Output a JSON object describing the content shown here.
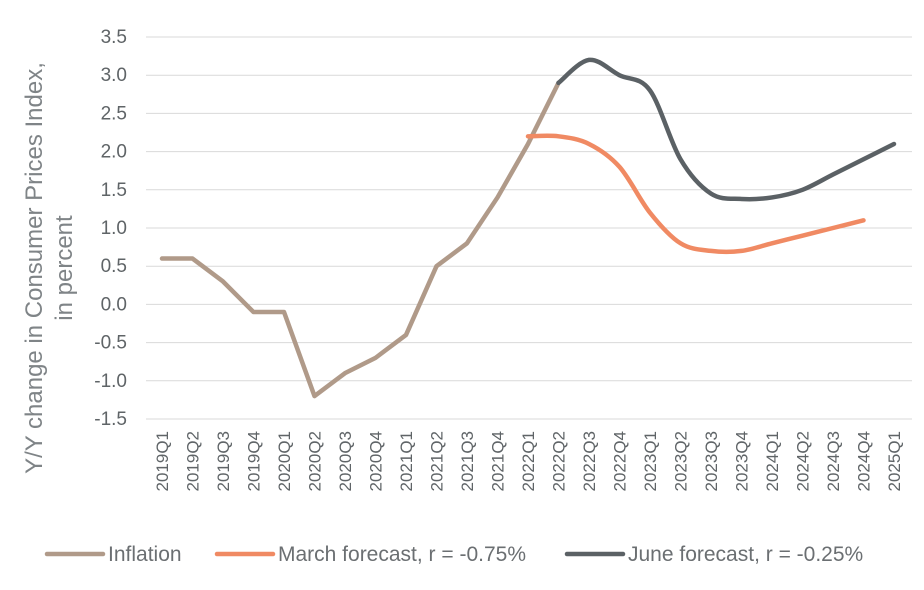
{
  "chart_data": {
    "type": "line",
    "title": "",
    "xlabel": "",
    "ylabel_lines": [
      "Y/Y change in Consumer Prices Index,",
      "in percent"
    ],
    "categories": [
      "2019Q1",
      "2019Q2",
      "2019Q3",
      "2019Q4",
      "2020Q1",
      "2020Q2",
      "2020Q3",
      "2020Q4",
      "2021Q1",
      "2021Q2",
      "2021Q3",
      "2021Q4",
      "2022Q1",
      "2022Q2",
      "2022Q3",
      "2022Q4",
      "2023Q1",
      "2023Q2",
      "2023Q3",
      "2023Q4",
      "2024Q1",
      "2024Q2",
      "2024Q3",
      "2024Q4",
      "2025Q1"
    ],
    "y_ticks": [
      "3.5",
      "3.0",
      "2.5",
      "2.0",
      "1.5",
      "1.0",
      "0.5",
      "0.0",
      "-0.5",
      "-1.0",
      "-1.5"
    ],
    "ylim": [
      -1.5,
      3.5
    ],
    "grid": true,
    "legend_position": "bottom",
    "series": [
      {
        "name": "Inflation",
        "color": "#b09a89",
        "smooth": false,
        "values": [
          0.6,
          0.6,
          0.3,
          -0.1,
          -0.1,
          -1.2,
          -0.9,
          -0.7,
          -0.4,
          0.5,
          0.8,
          1.4,
          2.1,
          2.9,
          null,
          null,
          null,
          null,
          null,
          null,
          null,
          null,
          null,
          null,
          null
        ]
      },
      {
        "name": "March forecast, r = -0.75%",
        "color": "#f08a63",
        "smooth": true,
        "values": [
          null,
          null,
          null,
          null,
          null,
          null,
          null,
          null,
          null,
          null,
          null,
          null,
          2.2,
          2.2,
          2.1,
          1.8,
          1.2,
          0.8,
          0.7,
          0.7,
          0.8,
          0.9,
          1.0,
          1.1,
          null
        ]
      },
      {
        "name": "June forecast, r = -0.25%",
        "color": "#5b6165",
        "smooth": true,
        "values": [
          null,
          null,
          null,
          null,
          null,
          null,
          null,
          null,
          null,
          null,
          null,
          null,
          null,
          2.9,
          3.2,
          3.0,
          2.8,
          1.9,
          1.45,
          1.38,
          1.4,
          1.5,
          1.7,
          1.9,
          2.1
        ]
      }
    ]
  }
}
